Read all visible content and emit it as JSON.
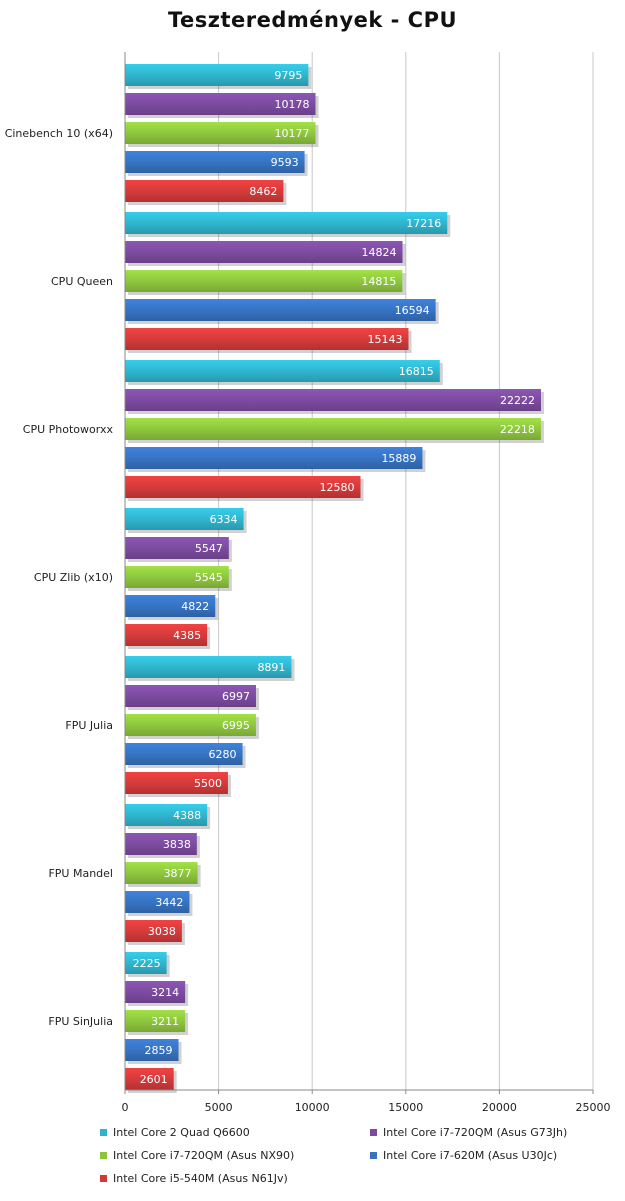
{
  "chart_data": {
    "type": "bar",
    "orientation": "horizontal",
    "title": "Teszteredmények - CPU",
    "categories": [
      "Cinebench 10 (x64)",
      "CPU Queen",
      "CPU Photoworxx",
      "CPU Zlib (x10)",
      "FPU Julia",
      "FPU Mandel",
      "FPU SinJulia"
    ],
    "series": [
      {
        "name": "Intel Core 2 Quad Q6600",
        "color": "#2fb3cc",
        "values": [
          9795,
          17216,
          16815,
          6334,
          8891,
          4388,
          2225
        ]
      },
      {
        "name": "Intel Core i7-720QM (Asus G73Jh)",
        "color": "#7b4b9e",
        "values": [
          10178,
          14824,
          22222,
          5547,
          6997,
          3838,
          3214
        ]
      },
      {
        "name": "Intel Core i7-720QM (Asus NX90)",
        "color": "#8dc43e",
        "values": [
          10177,
          14815,
          22218,
          5545,
          6995,
          3877,
          3211
        ]
      },
      {
        "name": "Intel Core i7-620M (Asus U30Jc)",
        "color": "#3672c0",
        "values": [
          9593,
          16594,
          15889,
          4822,
          6280,
          3442,
          2859
        ]
      },
      {
        "name": "Intel Core i5-540M (Asus N61Jv)",
        "color": "#d23a3a",
        "values": [
          8462,
          15143,
          12580,
          4385,
          5500,
          3038,
          2601
        ]
      }
    ],
    "xlim": [
      0,
      25000
    ],
    "xticks": [
      "0",
      "5000",
      "10000",
      "15000",
      "20000",
      "25000"
    ],
    "xlabel": "",
    "ylabel": "",
    "grid": true,
    "legend_position": "bottom"
  }
}
